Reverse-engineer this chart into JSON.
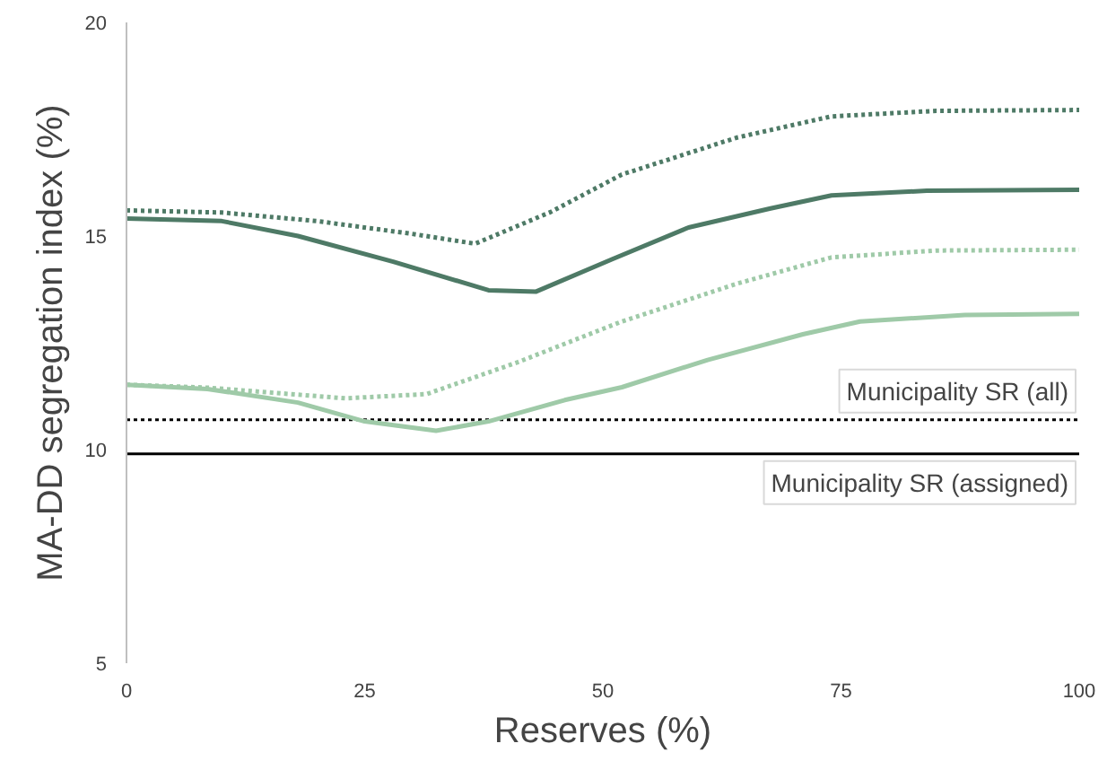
{
  "chart_data": {
    "type": "line",
    "xlabel": "Reserves (%)",
    "ylabel": "MA-DD segregation index (%)",
    "xlim": [
      0,
      100
    ],
    "ylim": [
      5,
      20
    ],
    "xticks": [
      0,
      25,
      50,
      75,
      100
    ],
    "yticks": [
      5,
      10,
      15,
      20
    ],
    "grid": false,
    "series": [
      {
        "color": "#4e7a66",
        "line_style": "dotted",
        "x": [
          0,
          10,
          20,
          30,
          36.6,
          44.5,
          52,
          64,
          74,
          85,
          100
        ],
        "values": [
          15.6,
          15.55,
          15.35,
          15.05,
          14.82,
          15.56,
          16.44,
          17.3,
          17.8,
          17.93,
          17.95
        ]
      },
      {
        "color": "#4e7a66",
        "line_style": "solid",
        "x": [
          0,
          10,
          18,
          28,
          38,
          43,
          51,
          59,
          67.5,
          74,
          84,
          100
        ],
        "values": [
          15.41,
          15.35,
          15.0,
          14.4,
          13.73,
          13.7,
          14.46,
          15.2,
          15.64,
          15.95,
          16.06,
          16.08
        ]
      },
      {
        "color": "#9fcaa8",
        "line_style": "dotted",
        "x": [
          0,
          8.5,
          23,
          31.5,
          41,
          52,
          64,
          74,
          85,
          100
        ],
        "values": [
          11.52,
          11.45,
          11.2,
          11.3,
          12.04,
          13.0,
          13.88,
          14.5,
          14.66,
          14.68
        ]
      },
      {
        "color": "#9fcaa8",
        "line_style": "solid",
        "x": [
          0,
          8.5,
          18,
          25,
          32.5,
          38,
          46,
          52,
          61,
          71,
          77,
          88,
          100
        ],
        "values": [
          11.52,
          11.42,
          11.1,
          10.66,
          10.44,
          10.66,
          11.16,
          11.46,
          12.1,
          12.7,
          13.0,
          13.15,
          13.18
        ]
      }
    ],
    "ref_lines": [
      {
        "axis": "y",
        "value": 10.7,
        "label": "Municipality SR (all)",
        "color": "#000000",
        "line_style": "dotted"
      },
      {
        "axis": "y",
        "value": 9.9,
        "label": "Municipality SR (assigned)",
        "color": "#000000",
        "line_style": "solid"
      }
    ]
  }
}
